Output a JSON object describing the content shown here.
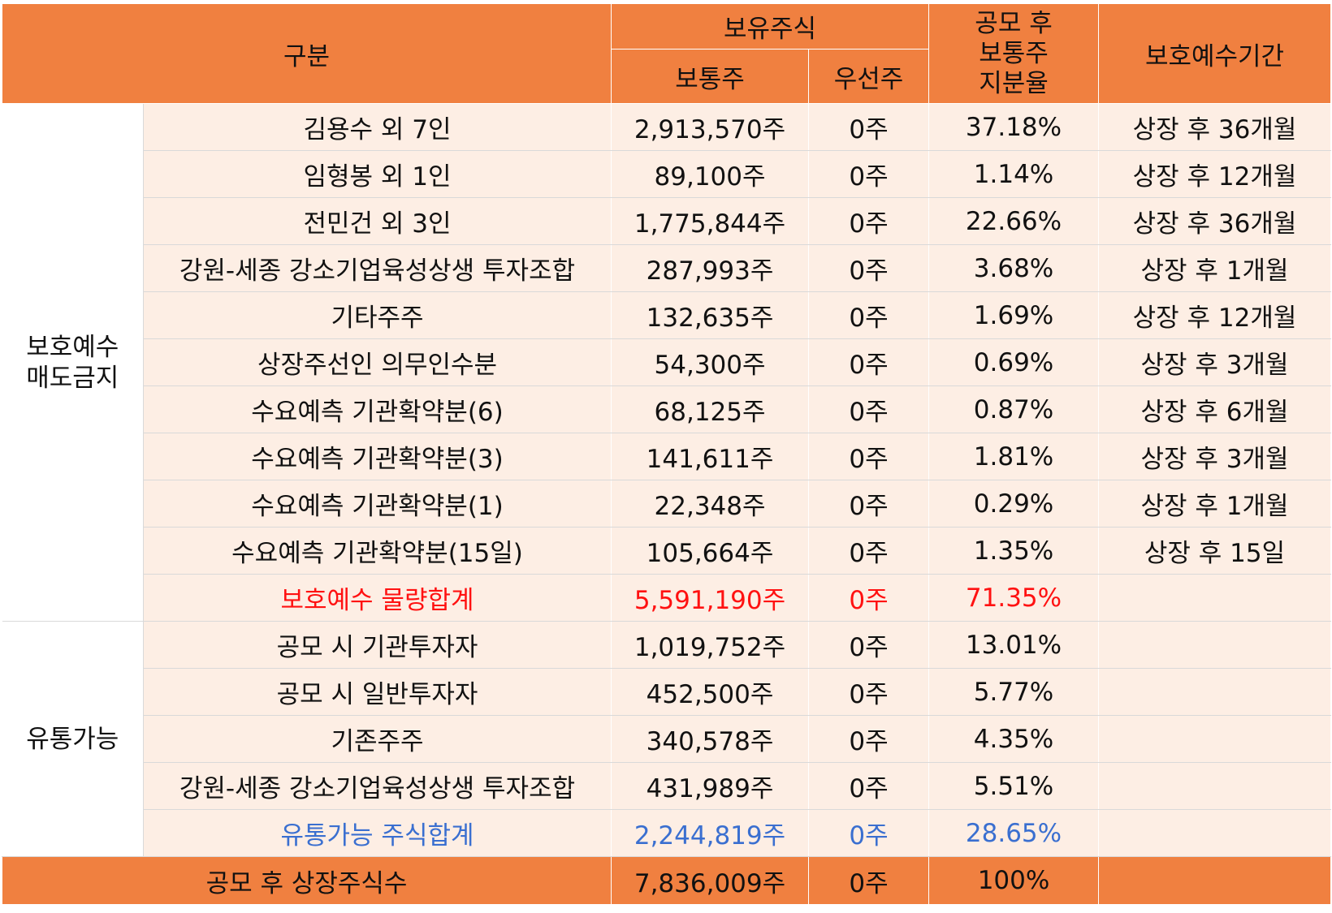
{
  "header": {
    "category": "구분",
    "holdings": "보유주식",
    "common": "보통주",
    "preferred": "우선주",
    "ratio_line1": "공모 후",
    "ratio_line2": "보통주",
    "ratio_line3": "지분율",
    "lockup_period": "보호예수기간"
  },
  "groups": {
    "locked": {
      "label_line1": "보호예수",
      "label_line2": "매도금지"
    },
    "tradable": {
      "label": "유통가능"
    }
  },
  "locked_rows": [
    {
      "name": "김용수 외 7인",
      "common": "2,913,570주",
      "preferred": "0주",
      "ratio": "37.18%",
      "period": "상장 후 36개월"
    },
    {
      "name": "임형봉 외 1인",
      "common": "89,100주",
      "preferred": "0주",
      "ratio": "1.14%",
      "period": "상장 후 12개월"
    },
    {
      "name": "전민건 외 3인",
      "common": "1,775,844주",
      "preferred": "0주",
      "ratio": "22.66%",
      "period": "상장 후 36개월"
    },
    {
      "name": "강원-세종 강소기업육성상생 투자조합",
      "common": "287,993주",
      "preferred": "0주",
      "ratio": "3.68%",
      "period": "상장 후 1개월"
    },
    {
      "name": "기타주주",
      "common": "132,635주",
      "preferred": "0주",
      "ratio": "1.69%",
      "period": "상장 후 12개월"
    },
    {
      "name": "상장주선인 의무인수분",
      "common": "54,300주",
      "preferred": "0주",
      "ratio": "0.69%",
      "period": "상장 후 3개월"
    },
    {
      "name": "수요예측 기관확약분(6)",
      "common": "68,125주",
      "preferred": "0주",
      "ratio": "0.87%",
      "period": "상장 후 6개월"
    },
    {
      "name": "수요예측 기관확약분(3)",
      "common": "141,611주",
      "preferred": "0주",
      "ratio": "1.81%",
      "period": "상장 후 3개월"
    },
    {
      "name": "수요예측 기관확약분(1)",
      "common": "22,348주",
      "preferred": "0주",
      "ratio": "0.29%",
      "period": "상장 후 1개월"
    },
    {
      "name": "수요예측 기관확약분(15일)",
      "common": "105,664주",
      "preferred": "0주",
      "ratio": "1.35%",
      "period": "상장 후 15일"
    }
  ],
  "locked_total": {
    "name": "보호예수 물량합계",
    "common": "5,591,190주",
    "preferred": "0주",
    "ratio": "71.35%",
    "period": ""
  },
  "tradable_rows": [
    {
      "name": "공모 시 기관투자자",
      "common": "1,019,752주",
      "preferred": "0주",
      "ratio": "13.01%",
      "period": ""
    },
    {
      "name": "공모 시 일반투자자",
      "common": "452,500주",
      "preferred": "0주",
      "ratio": "5.77%",
      "period": ""
    },
    {
      "name": "기존주주",
      "common": "340,578주",
      "preferred": "0주",
      "ratio": "4.35%",
      "period": ""
    },
    {
      "name": "강원-세종 강소기업육성상생 투자조합",
      "common": "431,989주",
      "preferred": "0주",
      "ratio": "5.51%",
      "period": ""
    }
  ],
  "tradable_total": {
    "name": "유통가능 주식합계",
    "common": "2,244,819주",
    "preferred": "0주",
    "ratio": "28.65%",
    "period": ""
  },
  "footer": {
    "name": "공모 후 상장주식수",
    "common": "7,836,009주",
    "preferred": "0주",
    "ratio": "100%",
    "period": ""
  },
  "colors": {
    "header_bg": "#f08040",
    "row_bg": "#fdeee4",
    "total_red": "#ff1111",
    "total_blue": "#3a6fd0"
  }
}
